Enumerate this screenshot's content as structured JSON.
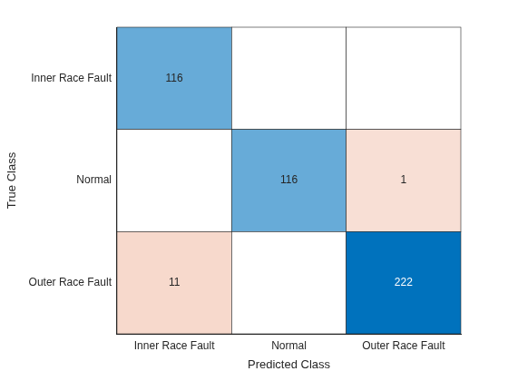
{
  "chart_data": {
    "type": "heatmap",
    "x_label": "Predicted Class",
    "y_label": "True Class",
    "x": [
      "Inner Race Fault",
      "Normal",
      "Outer Race Fault"
    ],
    "y": [
      "Inner Race Fault",
      "Normal",
      "Outer Race Fault"
    ],
    "cells": [
      [
        116,
        null,
        null
      ],
      [
        null,
        116,
        1
      ],
      [
        11,
        null,
        222
      ]
    ],
    "data_labels": true
  }
}
